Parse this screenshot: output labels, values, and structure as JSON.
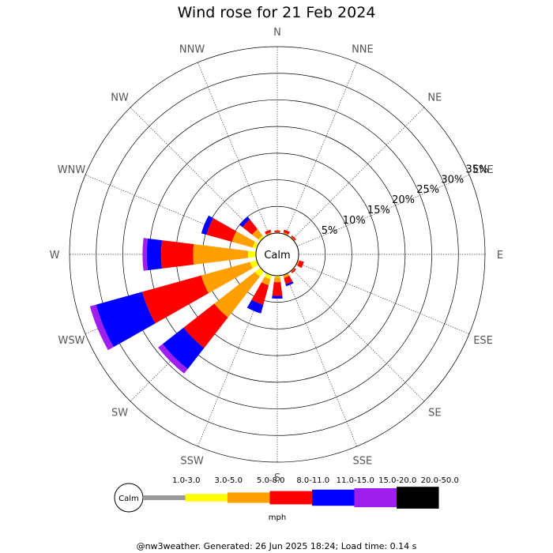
{
  "title": "Wind rose for 21 Feb 2024",
  "footer": "@nw3weather. Generated: 26 Jun 2025 18:24; Load time: 0.14 s",
  "chart_data": {
    "type": "wind-rose",
    "title": "Wind rose for 21 Feb 2024",
    "calm_label": "Calm",
    "unit": "mph",
    "directions": [
      "N",
      "NNE",
      "NE",
      "ENE",
      "E",
      "ESE",
      "SE",
      "SSE",
      "S",
      "SSW",
      "SW",
      "WSW",
      "W",
      "WNW",
      "NW",
      "NNW"
    ],
    "ring_labels": [
      "5%",
      "10%",
      "15%",
      "20%",
      "25%",
      "30%",
      "35%"
    ],
    "ring_values": [
      5,
      10,
      15,
      20,
      25,
      30,
      35
    ],
    "r_max_percent": 35,
    "speed_bins": [
      {
        "label": "1.0-3.0",
        "color": "#999999"
      },
      {
        "label": "3.0-5.0",
        "color": "#ffff00"
      },
      {
        "label": "5.0-8.0",
        "color": "#ff9f00"
      },
      {
        "label": "8.0-11.0",
        "color": "#ff0000"
      },
      {
        "label": "11.0-15.0",
        "color": "#0000ff"
      },
      {
        "label": "15.0-20.0",
        "color": "#9f1fef"
      },
      {
        "label": "20.0-50.0",
        "color": "#000000"
      }
    ],
    "sectors": [
      {
        "dir": "N",
        "cumulative": [
          0,
          0,
          0.2,
          0.5,
          0.5,
          0.5,
          0.5
        ]
      },
      {
        "dir": "NNE",
        "cumulative": [
          0,
          0,
          0.3,
          0.8,
          0.8,
          0.8,
          0.8
        ]
      },
      {
        "dir": "NE",
        "cumulative": [
          0,
          0,
          0.2,
          0.5,
          0.5,
          0.5,
          0.5
        ]
      },
      {
        "dir": "ENE",
        "cumulative": [
          0,
          0,
          0,
          0,
          0,
          0,
          0
        ]
      },
      {
        "dir": "E",
        "cumulative": [
          0,
          0,
          0,
          0,
          0,
          0,
          0
        ]
      },
      {
        "dir": "ESE",
        "cumulative": [
          0,
          0,
          0.3,
          1.2,
          1.2,
          1.2,
          1.2
        ]
      },
      {
        "dir": "SE",
        "cumulative": [
          0,
          0,
          0.2,
          0.5,
          0.5,
          0.5,
          0.5
        ]
      },
      {
        "dir": "SSE",
        "cumulative": [
          0,
          0,
          0.6,
          1.8,
          2.2,
          2.2,
          2.2
        ]
      },
      {
        "dir": "S",
        "cumulative": [
          0,
          0.3,
          1.2,
          3.8,
          4.3,
          4.3,
          4.3
        ]
      },
      {
        "dir": "SSW",
        "cumulative": [
          0,
          0.8,
          2.0,
          5.8,
          7.5,
          7.5,
          7.5
        ]
      },
      {
        "dir": "SW",
        "cumulative": [
          0,
          1.3,
          11.0,
          18.3,
          23.3,
          24.4,
          24.4
        ]
      },
      {
        "dir": "WSW",
        "cumulative": [
          0,
          1.3,
          10.8,
          22.3,
          31.3,
          32.5,
          32.5
        ]
      },
      {
        "dir": "W",
        "cumulative": [
          0,
          1.5,
          11.8,
          17.8,
          20.5,
          21.3,
          21.3
        ]
      },
      {
        "dir": "WNW",
        "cumulative": [
          0,
          0.8,
          4.8,
          9.8,
          10.8,
          10.8,
          10.8
        ]
      },
      {
        "dir": "NW",
        "cumulative": [
          0,
          0.5,
          2.0,
          4.3,
          5.0,
          5.0,
          5.0
        ]
      },
      {
        "dir": "NNW",
        "cumulative": [
          0,
          0,
          0.3,
          0.8,
          0.8,
          0.8,
          0.8
        ]
      }
    ]
  }
}
